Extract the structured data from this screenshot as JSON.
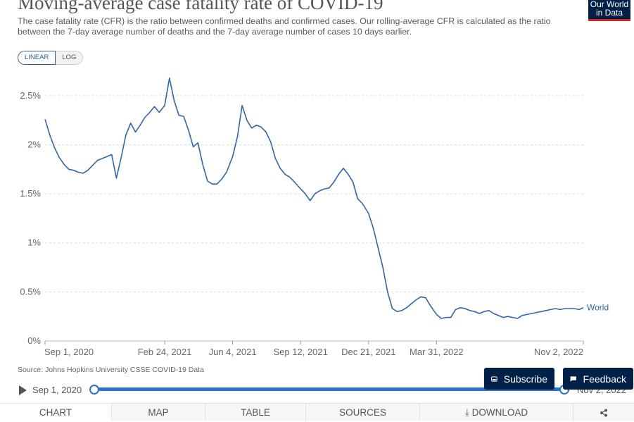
{
  "header": {
    "title": "Moving-average case fatality rate of COVID-19",
    "subtitle": "The case fatality rate (CFR) is the ratio between confirmed deaths and confirmed cases. Our rolling-average CFR is calculated as the ratio between the 7-day average number of deaths and the 7-day average number of cases 10 days earlier.",
    "logo_line1": "Our World",
    "logo_line2": "in Data"
  },
  "controls": {
    "linear_label": "LINEAR",
    "log_label": "LOG",
    "active_scale": "linear"
  },
  "chart_data": {
    "type": "line",
    "title": "Moving-average case fatality rate of COVID-19",
    "xlabel": "",
    "ylabel": "",
    "x_tick_labels": [
      "Sep 1, 2020",
      "Feb 24, 2021",
      "Jun 4, 2021",
      "Sep 12, 2021",
      "Dec 21, 2021",
      "Mar 31, 2022",
      "Nov 2, 2022"
    ],
    "x_tick_dates": [
      "2020-09-01",
      "2021-02-24",
      "2021-06-04",
      "2021-09-12",
      "2021-12-21",
      "2022-03-31",
      "2022-11-02"
    ],
    "y_tick_labels": [
      "0%",
      "0.5%",
      "1%",
      "1.5%",
      "2%",
      "2.5%"
    ],
    "y_tick_values": [
      0,
      0.5,
      1,
      1.5,
      2,
      2.5
    ],
    "xlim": [
      "2020-09-01",
      "2022-11-02"
    ],
    "ylim": [
      0,
      2.7
    ],
    "grid": "horizontal dashed",
    "series": [
      {
        "name": "World",
        "color": "#2e66b0",
        "points": [
          [
            "2020-09-01",
            2.26
          ],
          [
            "2020-09-08",
            2.1
          ],
          [
            "2020-09-15",
            1.97
          ],
          [
            "2020-09-22",
            1.87
          ],
          [
            "2020-09-29",
            1.8
          ],
          [
            "2020-10-06",
            1.75
          ],
          [
            "2020-10-13",
            1.74
          ],
          [
            "2020-10-20",
            1.72
          ],
          [
            "2020-10-27",
            1.71
          ],
          [
            "2020-11-03",
            1.74
          ],
          [
            "2020-11-10",
            1.79
          ],
          [
            "2020-11-17",
            1.84
          ],
          [
            "2020-11-24",
            1.86
          ],
          [
            "2020-12-01",
            1.88
          ],
          [
            "2020-12-08",
            1.9
          ],
          [
            "2020-12-15",
            1.66
          ],
          [
            "2020-12-22",
            1.87
          ],
          [
            "2020-12-29",
            2.1
          ],
          [
            "2021-01-05",
            2.22
          ],
          [
            "2021-01-12",
            2.13
          ],
          [
            "2021-01-19",
            2.2
          ],
          [
            "2021-01-26",
            2.28
          ],
          [
            "2021-02-02",
            2.33
          ],
          [
            "2021-02-09",
            2.39
          ],
          [
            "2021-02-16",
            2.33
          ],
          [
            "2021-02-24",
            2.4
          ],
          [
            "2021-03-03",
            2.68
          ],
          [
            "2021-03-10",
            2.45
          ],
          [
            "2021-03-17",
            2.3
          ],
          [
            "2021-03-24",
            2.29
          ],
          [
            "2021-03-31",
            2.15
          ],
          [
            "2021-04-07",
            1.98
          ],
          [
            "2021-04-14",
            2.02
          ],
          [
            "2021-04-21",
            1.8
          ],
          [
            "2021-04-28",
            1.63
          ],
          [
            "2021-05-05",
            1.6
          ],
          [
            "2021-05-12",
            1.6
          ],
          [
            "2021-05-19",
            1.65
          ],
          [
            "2021-05-26",
            1.72
          ],
          [
            "2021-06-04",
            1.88
          ],
          [
            "2021-06-11",
            2.08
          ],
          [
            "2021-06-18",
            2.4
          ],
          [
            "2021-06-25",
            2.25
          ],
          [
            "2021-07-02",
            2.17
          ],
          [
            "2021-07-09",
            2.2
          ],
          [
            "2021-07-16",
            2.18
          ],
          [
            "2021-07-23",
            2.13
          ],
          [
            "2021-07-30",
            2.03
          ],
          [
            "2021-08-06",
            1.86
          ],
          [
            "2021-08-13",
            1.76
          ],
          [
            "2021-08-20",
            1.7
          ],
          [
            "2021-08-27",
            1.67
          ],
          [
            "2021-09-03",
            1.62
          ],
          [
            "2021-09-12",
            1.55
          ],
          [
            "2021-09-19",
            1.5
          ],
          [
            "2021-09-26",
            1.43
          ],
          [
            "2021-10-03",
            1.5
          ],
          [
            "2021-10-10",
            1.53
          ],
          [
            "2021-10-17",
            1.55
          ],
          [
            "2021-10-24",
            1.56
          ],
          [
            "2021-10-31",
            1.62
          ],
          [
            "2021-11-07",
            1.7
          ],
          [
            "2021-11-14",
            1.76
          ],
          [
            "2021-11-21",
            1.7
          ],
          [
            "2021-11-28",
            1.62
          ],
          [
            "2021-12-05",
            1.45
          ],
          [
            "2021-12-12",
            1.4
          ],
          [
            "2021-12-21",
            1.3
          ],
          [
            "2021-12-28",
            1.15
          ],
          [
            "2022-01-04",
            0.95
          ],
          [
            "2022-01-11",
            0.75
          ],
          [
            "2022-01-18",
            0.5
          ],
          [
            "2022-01-25",
            0.33
          ],
          [
            "2022-02-01",
            0.3
          ],
          [
            "2022-02-08",
            0.31
          ],
          [
            "2022-02-15",
            0.34
          ],
          [
            "2022-02-22",
            0.38
          ],
          [
            "2022-03-01",
            0.42
          ],
          [
            "2022-03-08",
            0.45
          ],
          [
            "2022-03-15",
            0.44
          ],
          [
            "2022-03-22",
            0.36
          ],
          [
            "2022-03-31",
            0.27
          ],
          [
            "2022-04-07",
            0.23
          ],
          [
            "2022-04-14",
            0.24
          ],
          [
            "2022-04-21",
            0.24
          ],
          [
            "2022-04-28",
            0.32
          ],
          [
            "2022-05-05",
            0.34
          ],
          [
            "2022-05-12",
            0.33
          ],
          [
            "2022-05-19",
            0.31
          ],
          [
            "2022-05-26",
            0.3
          ],
          [
            "2022-06-02",
            0.28
          ],
          [
            "2022-06-09",
            0.3
          ],
          [
            "2022-06-16",
            0.31
          ],
          [
            "2022-06-23",
            0.28
          ],
          [
            "2022-06-30",
            0.26
          ],
          [
            "2022-07-07",
            0.24
          ],
          [
            "2022-07-14",
            0.25
          ],
          [
            "2022-07-21",
            0.24
          ],
          [
            "2022-07-28",
            0.23
          ],
          [
            "2022-08-04",
            0.26
          ],
          [
            "2022-08-11",
            0.27
          ],
          [
            "2022-08-18",
            0.28
          ],
          [
            "2022-08-25",
            0.29
          ],
          [
            "2022-09-01",
            0.3
          ],
          [
            "2022-09-08",
            0.31
          ],
          [
            "2022-09-15",
            0.32
          ],
          [
            "2022-09-22",
            0.33
          ],
          [
            "2022-09-29",
            0.32
          ],
          [
            "2022-10-06",
            0.33
          ],
          [
            "2022-10-13",
            0.33
          ],
          [
            "2022-10-20",
            0.33
          ],
          [
            "2022-10-27",
            0.32
          ],
          [
            "2022-11-02",
            0.34
          ]
        ]
      }
    ]
  },
  "footer": {
    "source": "Source: Johns Hopkins University CSSE COVID-19 Data",
    "timeline_start": "Sep 1, 2020",
    "timeline_end": "Nov 2, 2022",
    "subscribe_label": "Subscribe",
    "feedback_label": "Feedback"
  },
  "tabs": [
    {
      "label": "CHART",
      "active": true
    },
    {
      "label": "MAP"
    },
    {
      "label": "TABLE"
    },
    {
      "label": "SOURCES"
    },
    {
      "label": "DOWNLOAD"
    },
    {
      "label": ""
    }
  ]
}
